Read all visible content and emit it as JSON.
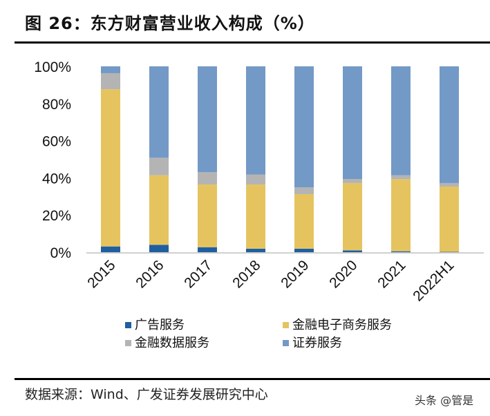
{
  "title": "图 26：东方财富营业收入构成（%）",
  "source": "数据来源：Wind、广发证券发展研究中心",
  "watermark": "头条 @管是",
  "chart_data": {
    "type": "bar",
    "stacked": true,
    "title": "",
    "xlabel": "",
    "ylabel": "",
    "ylim": [
      0,
      100
    ],
    "yticks": [
      "0%",
      "20%",
      "40%",
      "60%",
      "80%",
      "100%"
    ],
    "grid": false,
    "legend_position": "bottom",
    "categories": [
      "2015",
      "2016",
      "2017",
      "2018",
      "2019",
      "2020",
      "2021",
      "2022H1"
    ],
    "series": [
      {
        "name": "广告服务",
        "color": "#1f5fa0",
        "values": [
          3.1,
          4.0,
          2.7,
          1.9,
          1.9,
          1.0,
          0.5,
          0.2
        ]
      },
      {
        "name": "金融电子商务服务",
        "color": "#e5c45f",
        "values": [
          84.6,
          37.4,
          33.7,
          34.5,
          29.3,
          36.2,
          38.8,
          35.1
        ]
      },
      {
        "name": "金融数据服务",
        "color": "#b4b4b4",
        "values": [
          8.6,
          9.4,
          6.7,
          5.4,
          3.7,
          2.2,
          2.1,
          1.9
        ]
      },
      {
        "name": "证券服务",
        "color": "#7399c6",
        "values": [
          3.7,
          49.2,
          56.9,
          58.2,
          65.1,
          60.6,
          58.6,
          62.8
        ]
      }
    ]
  }
}
